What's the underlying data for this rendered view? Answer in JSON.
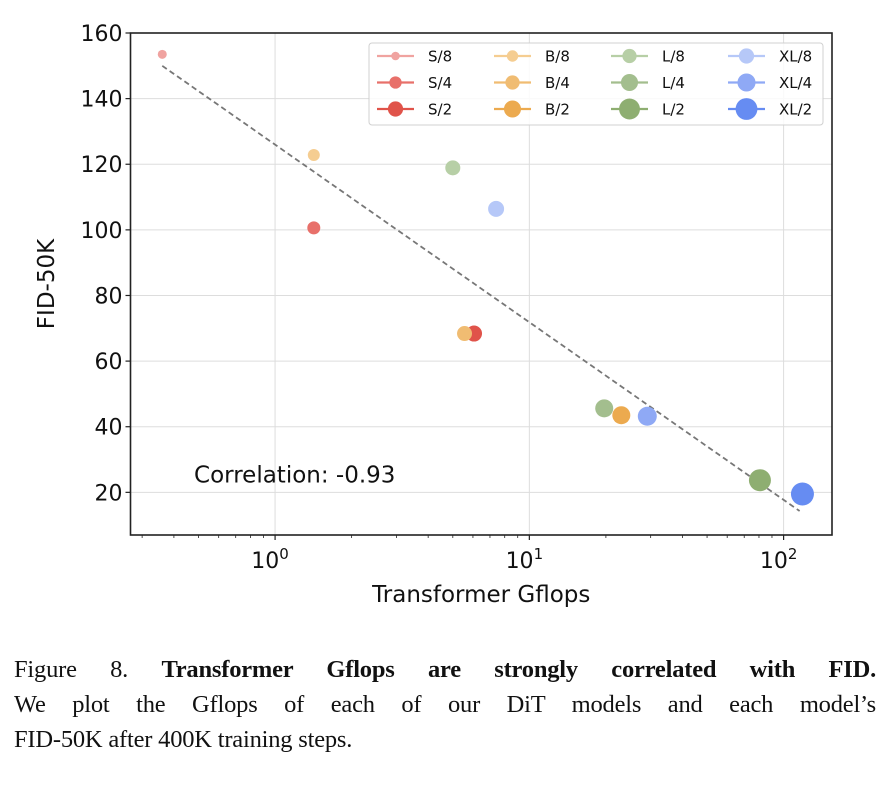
{
  "chart_data": {
    "type": "scatter",
    "title": "",
    "xlabel": "Transformer Gflops",
    "ylabel": "FID-50K",
    "xscale": "log",
    "xlim": [
      0.27,
      155
    ],
    "ylim": [
      7,
      160
    ],
    "xticks": [
      {
        "value": 1,
        "base": "10",
        "exp": "0"
      },
      {
        "value": 10,
        "base": "10",
        "exp": "1"
      },
      {
        "value": 100,
        "base": "10",
        "exp": "2"
      }
    ],
    "yticks": [
      20,
      40,
      60,
      80,
      100,
      120,
      140,
      160
    ],
    "grid": true,
    "legend_position": "top-right",
    "legend_columns": 4,
    "series": [
      {
        "name": "S/8",
        "color": "#f0a3a0",
        "size": 4.5,
        "x": 0.36,
        "y": 153.5
      },
      {
        "name": "S/4",
        "color": "#e8706a",
        "size": 6.5,
        "x": 1.42,
        "y": 100.6
      },
      {
        "name": "S/2",
        "color": "#e0534a",
        "size": 8.0,
        "x": 6.06,
        "y": 68.4
      },
      {
        "name": "B/8",
        "color": "#f5cd91",
        "size": 6.0,
        "x": 1.42,
        "y": 122.8
      },
      {
        "name": "B/4",
        "color": "#f0bc72",
        "size": 7.5,
        "x": 5.56,
        "y": 68.4
      },
      {
        "name": "B/2",
        "color": "#ecaa4f",
        "size": 9.0,
        "x": 23.0,
        "y": 43.5
      },
      {
        "name": "L/8",
        "color": "#b7cfa6",
        "size": 7.5,
        "x": 5.0,
        "y": 118.9
      },
      {
        "name": "L/4",
        "color": "#a3be8e",
        "size": 9.0,
        "x": 19.7,
        "y": 45.6
      },
      {
        "name": "L/2",
        "color": "#8eae71",
        "size": 11.0,
        "x": 80.7,
        "y": 23.7
      },
      {
        "name": "XL/8",
        "color": "#b6c8f8",
        "size": 8.0,
        "x": 7.4,
        "y": 106.4
      },
      {
        "name": "XL/4",
        "color": "#8fa9f5",
        "size": 9.5,
        "x": 29.1,
        "y": 43.2
      },
      {
        "name": "XL/2",
        "color": "#668cf2",
        "size": 11.5,
        "x": 118.6,
        "y": 19.5
      }
    ],
    "trendline": {
      "style": "dashed",
      "color": "#777777",
      "x": [
        0.36,
        115.6
      ],
      "y": [
        150.0,
        14.3
      ]
    },
    "annotations": [
      {
        "text": "Correlation: -0.93",
        "x": 0.48,
        "y": 25.5
      }
    ]
  },
  "caption": {
    "label": "Figure 8.",
    "bold": "Transformer Gflops are strongly correlated with FID.",
    "line2": "We plot the Gflops of each of our DiT models and each model’s",
    "line3": "FID-50K after 400K training steps."
  }
}
